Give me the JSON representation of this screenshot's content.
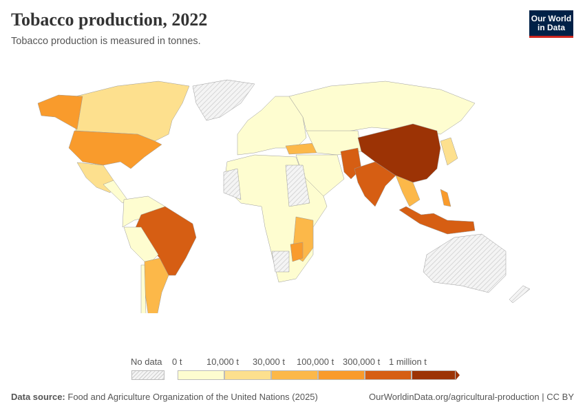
{
  "header": {
    "title": "Tobacco production, 2022",
    "subtitle": "Tobacco production is measured in tonnes.",
    "logo": "Our World in Data"
  },
  "legend": {
    "no_data": "No data",
    "bins": [
      "0 t",
      "10,000 t",
      "30,000 t",
      "100,000 t",
      "300,000 t",
      "1 million t"
    ],
    "colors": [
      "#fefdd0",
      "#fde08e",
      "#fcb849",
      "#f99b2c",
      "#d65e13",
      "#9c3305"
    ],
    "no_data_color": "#eeeeee"
  },
  "footer": {
    "source_label": "Data source:",
    "source": "Food and Agriculture Organization of the United Nations (2025)",
    "url": "OurWorldinData.org/agricultural-production",
    "license": "CC BY"
  }
}
